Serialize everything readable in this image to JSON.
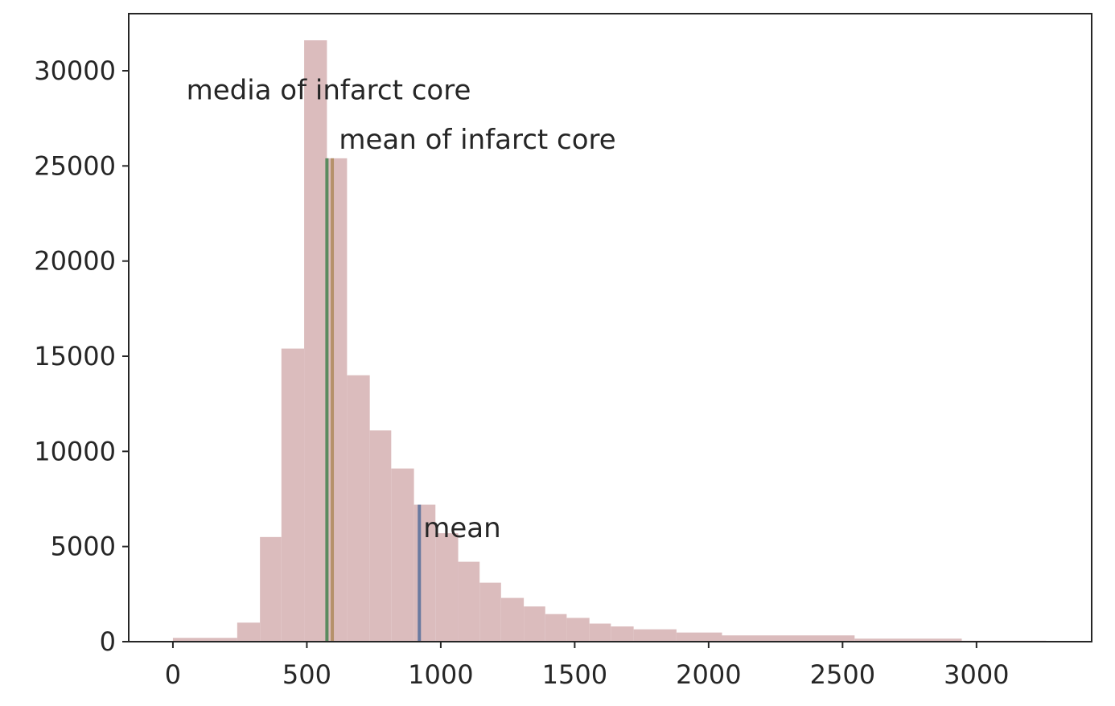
{
  "chart_data": {
    "type": "bar",
    "title": "",
    "xlabel": "",
    "ylabel": "",
    "xlim": [
      -165,
      3430
    ],
    "ylim": [
      0,
      33000
    ],
    "grid": false,
    "legend": "none",
    "x_ticks": [
      {
        "value": 0,
        "label": "0"
      },
      {
        "value": 500,
        "label": "500"
      },
      {
        "value": 1000,
        "label": "1000"
      },
      {
        "value": 1500,
        "label": "1500"
      },
      {
        "value": 2000,
        "label": "2000"
      },
      {
        "value": 2500,
        "label": "2500"
      },
      {
        "value": 3000,
        "label": "3000"
      }
    ],
    "y_ticks": [
      {
        "value": 0,
        "label": "0"
      },
      {
        "value": 5000,
        "label": "5000"
      },
      {
        "value": 10000,
        "label": "10000"
      },
      {
        "value": 15000,
        "label": "15000"
      },
      {
        "value": 20000,
        "label": "20000"
      },
      {
        "value": 25000,
        "label": "25000"
      },
      {
        "value": 30000,
        "label": "30000"
      }
    ],
    "bar_color": "#dbbcbd",
    "bins": [
      {
        "x0": 0,
        "x1": 240,
        "count": 200
      },
      {
        "x0": 240,
        "x1": 325,
        "count": 1000
      },
      {
        "x0": 325,
        "x1": 405,
        "count": 5500
      },
      {
        "x0": 405,
        "x1": 490,
        "count": 15400
      },
      {
        "x0": 490,
        "x1": 575,
        "count": 31600
      },
      {
        "x0": 575,
        "x1": 650,
        "count": 25400
      },
      {
        "x0": 650,
        "x1": 735,
        "count": 14000
      },
      {
        "x0": 735,
        "x1": 815,
        "count": 11100
      },
      {
        "x0": 815,
        "x1": 900,
        "count": 9100
      },
      {
        "x0": 900,
        "x1": 980,
        "count": 7200
      },
      {
        "x0": 980,
        "x1": 1065,
        "count": 5700
      },
      {
        "x0": 1065,
        "x1": 1145,
        "count": 4200
      },
      {
        "x0": 1145,
        "x1": 1225,
        "count": 3100
      },
      {
        "x0": 1225,
        "x1": 1310,
        "count": 2300
      },
      {
        "x0": 1310,
        "x1": 1390,
        "count": 1850
      },
      {
        "x0": 1390,
        "x1": 1470,
        "count": 1450
      },
      {
        "x0": 1470,
        "x1": 1555,
        "count": 1250
      },
      {
        "x0": 1555,
        "x1": 1635,
        "count": 950
      },
      {
        "x0": 1635,
        "x1": 1720,
        "count": 800
      },
      {
        "x0": 1720,
        "x1": 1880,
        "count": 650
      },
      {
        "x0": 1880,
        "x1": 2050,
        "count": 480
      },
      {
        "x0": 2050,
        "x1": 2545,
        "count": 330
      },
      {
        "x0": 2545,
        "x1": 2945,
        "count": 160
      },
      {
        "x0": 2945,
        "x1": 3260,
        "count": 50
      }
    ],
    "vlines": [
      {
        "name": "median-line",
        "x": 575,
        "y_max": 25400,
        "color": "#5a8a5f"
      },
      {
        "name": "infarct-mean-line",
        "x": 595,
        "y_max": 25400,
        "color": "#b5916a"
      },
      {
        "name": "overall-mean-line",
        "x": 920,
        "y_max": 7200,
        "color": "#6a7aa0"
      }
    ],
    "annotations": [
      {
        "name": "annotation-median",
        "text": "media of infarct core",
        "x": 50,
        "y": 28500
      },
      {
        "name": "annotation-infarct-mean",
        "text": "mean of infarct core",
        "x": 620,
        "y": 25900
      },
      {
        "name": "annotation-mean",
        "text": "mean",
        "x": 935,
        "y": 5500
      }
    ]
  }
}
